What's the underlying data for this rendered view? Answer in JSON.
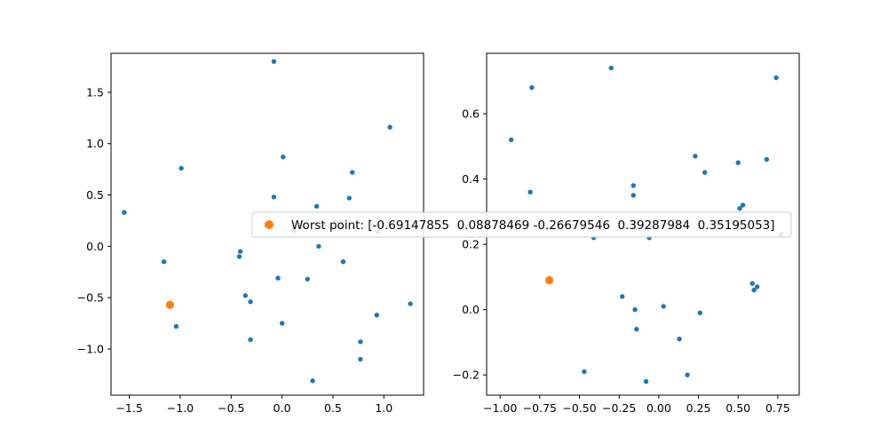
{
  "colors": {
    "series_points": "#1f77b4",
    "worst_point": "#ff7f0e",
    "axes": "#000000",
    "legend_border": "#cccccc",
    "background": "#ffffff"
  },
  "legend": {
    "label": "Worst point: [-0.69147855  0.08878469 -0.26679546  0.39287984  0.35195053]",
    "placement": "center"
  },
  "chart_data": [
    {
      "type": "scatter",
      "xlim": [
        -1.68,
        1.39
      ],
      "ylim": [
        -1.45,
        1.88
      ],
      "xticks": [
        "-1.5",
        "-1.0",
        "-0.5",
        "0.0",
        "0.5",
        "1.0"
      ],
      "xtick_values": [
        -1.5,
        -1.0,
        -0.5,
        0.0,
        0.5,
        1.0
      ],
      "yticks": [
        "-1.0",
        "-0.5",
        "0.0",
        "0.5",
        "1.0",
        "1.5"
      ],
      "ytick_values": [
        -1.0,
        -0.5,
        0.0,
        0.5,
        1.0,
        1.5
      ],
      "points": [
        [
          -0.08,
          1.8
        ],
        [
          1.06,
          1.16
        ],
        [
          -0.99,
          0.76
        ],
        [
          0.01,
          0.87
        ],
        [
          0.69,
          0.72
        ],
        [
          -0.08,
          0.48
        ],
        [
          0.66,
          0.47
        ],
        [
          -1.55,
          0.33
        ],
        [
          0.34,
          0.39
        ],
        [
          0.94,
          0.14
        ],
        [
          0.36,
          0.0
        ],
        [
          -0.41,
          -0.05
        ],
        [
          -0.42,
          -0.1
        ],
        [
          -1.16,
          -0.15
        ],
        [
          0.6,
          -0.15
        ],
        [
          -0.04,
          -0.31
        ],
        [
          0.25,
          -0.32
        ],
        [
          -0.36,
          -0.48
        ],
        [
          -0.31,
          -0.54
        ],
        [
          1.26,
          -0.56
        ],
        [
          0.93,
          -0.67
        ],
        [
          0.0,
          -0.75
        ],
        [
          -1.04,
          -0.78
        ],
        [
          -0.31,
          -0.91
        ],
        [
          0.77,
          -0.93
        ],
        [
          0.77,
          -1.1
        ],
        [
          0.3,
          -1.31
        ],
        [
          0.12,
          0.15
        ]
      ],
      "worst_point": [
        -1.1,
        -0.57
      ]
    },
    {
      "type": "scatter",
      "xlim": [
        -1.085,
        0.885
      ],
      "ylim": [
        -0.262,
        0.785
      ],
      "xticks": [
        "-1.00",
        "-0.75",
        "-0.50",
        "-0.25",
        "0.00",
        "0.25",
        "0.50",
        "0.75"
      ],
      "xtick_values": [
        -1.0,
        -0.75,
        -0.5,
        -0.25,
        0.0,
        0.25,
        0.5,
        0.75
      ],
      "yticks": [
        "-0.2",
        "0.0",
        "0.2",
        "0.4",
        "0.6"
      ],
      "ytick_values": [
        -0.2,
        0.0,
        0.2,
        0.4,
        0.6
      ],
      "points": [
        [
          -0.3,
          0.74
        ],
        [
          0.74,
          0.71
        ],
        [
          -0.8,
          0.68
        ],
        [
          -0.93,
          0.52
        ],
        [
          0.23,
          0.47
        ],
        [
          0.68,
          0.46
        ],
        [
          0.5,
          0.45
        ],
        [
          0.29,
          0.42
        ],
        [
          -0.16,
          0.38
        ],
        [
          -0.81,
          0.36
        ],
        [
          -0.16,
          0.35
        ],
        [
          0.53,
          0.32
        ],
        [
          0.51,
          0.31
        ],
        [
          0.77,
          0.23
        ],
        [
          -0.41,
          0.22
        ],
        [
          -0.06,
          0.22
        ],
        [
          0.59,
          0.08
        ],
        [
          0.62,
          0.07
        ],
        [
          0.6,
          0.06
        ],
        [
          -0.23,
          0.04
        ],
        [
          0.03,
          0.01
        ],
        [
          -0.15,
          0.0
        ],
        [
          0.26,
          -0.01
        ],
        [
          -0.14,
          -0.06
        ],
        [
          0.13,
          -0.09
        ],
        [
          -0.47,
          -0.19
        ],
        [
          0.18,
          -0.2
        ],
        [
          -0.08,
          -0.22
        ]
      ],
      "worst_point": [
        -0.69,
        0.09
      ]
    }
  ]
}
